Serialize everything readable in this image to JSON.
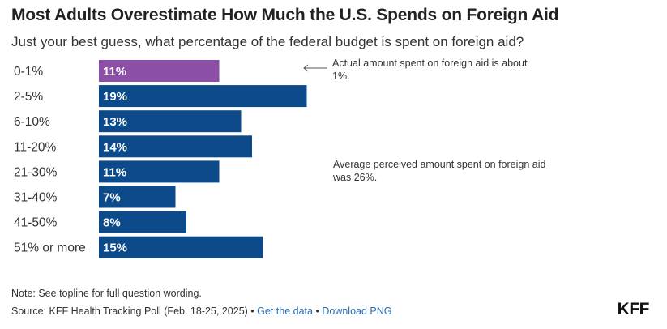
{
  "header": {
    "title": "Most Adults Overestimate How Much the U.S. Spends on Foreign Aid",
    "subtitle": "Just your best guess, what percentage of the federal budget is spent on foreign aid?"
  },
  "colors": {
    "highlight": "#8b4fa8",
    "bar": "#0d4a8a",
    "link": "#2b6cb0"
  },
  "chart_data": {
    "type": "bar",
    "orientation": "horizontal",
    "title": "Most Adults Overestimate How Much the U.S. Spends on Foreign Aid",
    "subtitle": "Just your best guess, what percentage of the federal budget is spent on foreign aid?",
    "categories": [
      "0-1%",
      "2-5%",
      "6-10%",
      "11-20%",
      "21-30%",
      "31-40%",
      "41-50%",
      "51% or more"
    ],
    "values": [
      11,
      19,
      13,
      14,
      11,
      7,
      8,
      15
    ],
    "value_labels": [
      "11%",
      "19%",
      "13%",
      "14%",
      "11%",
      "7%",
      "8%",
      "15%"
    ],
    "highlight_index": 0,
    "xlabel": "",
    "ylabel": "",
    "xlim": [
      0,
      19
    ],
    "grid": false,
    "legend": "none"
  },
  "annotations": {
    "actual": "Actual amount spent on foreign aid is about 1%.",
    "average": "Average perceived amount spent on foreign aid was 26%."
  },
  "footer": {
    "note": "Note: See topline for full question wording.",
    "source": "Source: KFF Health Tracking Poll (Feb. 18-25, 2025)",
    "separator": "•",
    "get_data": "Get the data",
    "download_png": "Download PNG",
    "logo": "KFF"
  }
}
